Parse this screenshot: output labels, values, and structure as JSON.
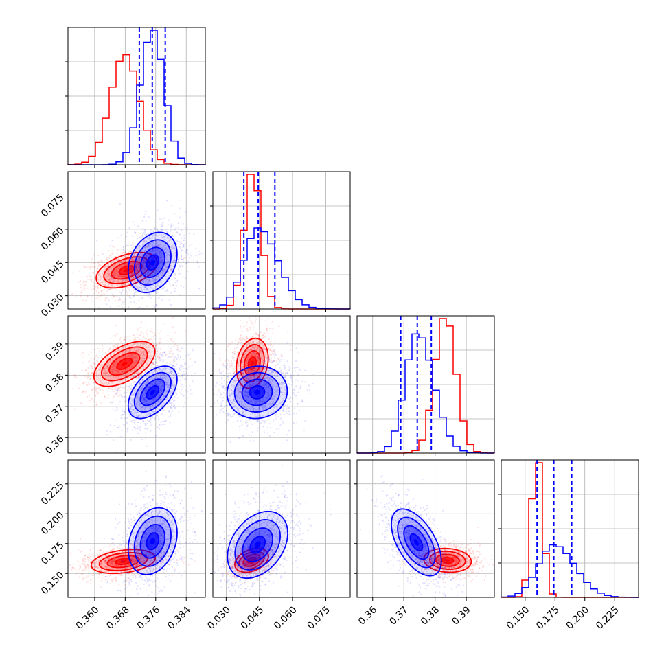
{
  "chart_data": {
    "type": "corner",
    "title": "",
    "parameters": 4,
    "grid": true,
    "series": [
      {
        "color": "#ff0000",
        "label": ""
      },
      {
        "color": "#0000ff",
        "label": ""
      }
    ],
    "axes": {
      "p0": {
        "range": [
          0.353,
          0.389
        ],
        "ticks": [
          0.36,
          0.368,
          0.376,
          0.384
        ],
        "tick_labels": [
          "0.360",
          "0.368",
          "0.376",
          "0.384"
        ]
      },
      "p1": {
        "range": [
          0.024,
          0.086
        ],
        "ticks": [
          0.03,
          0.045,
          0.06,
          0.075
        ],
        "tick_labels": [
          "0.030",
          "0.045",
          "0.060",
          "0.075"
        ]
      },
      "p2": {
        "range": [
          0.355,
          0.399
        ],
        "ticks": [
          0.36,
          0.37,
          0.38,
          0.39
        ],
        "tick_labels": [
          "0.36",
          "0.37",
          "0.38",
          "0.39"
        ]
      },
      "p3": {
        "range": [
          0.13,
          0.245
        ],
        "ticks": [
          0.15,
          0.175,
          0.2,
          0.225
        ],
        "tick_labels": [
          "0.150",
          "0.175",
          "0.200",
          "0.225"
        ]
      }
    },
    "marginals": [
      {
        "param": "p0",
        "red": {
          "mean": 0.3679,
          "sd": 0.0038
        },
        "blue": {
          "mean": 0.3751,
          "sd": 0.0031
        },
        "quantiles_blue": [
          0.3717,
          0.3751,
          0.3785
        ]
      },
      {
        "param": "p1",
        "red": {
          "mean": 0.042,
          "sd": 0.0038
        },
        "blue": {
          "mean": 0.0445,
          "sd": 0.0065
        },
        "quantiles_blue": [
          0.038,
          0.0445,
          0.052
        ]
      },
      {
        "param": "p2",
        "red": {
          "mean": 0.3833,
          "sd": 0.0034
        },
        "blue": {
          "mean": 0.3743,
          "sd": 0.0039
        },
        "quantiles_blue": [
          0.369,
          0.3743,
          0.3788
        ]
      },
      {
        "param": "p3",
        "red": {
          "mean": 0.16,
          "sd": 0.0048
        },
        "blue": {
          "mean": 0.174,
          "sd": 0.013
        },
        "quantiles_blue": [
          0.16,
          0.174,
          0.189
        ]
      }
    ],
    "joints": [
      {
        "x": "p0",
        "y": "p1",
        "red": {
          "cx": 0.3684,
          "cy": 0.0415,
          "sx": 0.004,
          "sy": 0.004,
          "rho": 0.45
        },
        "blue": {
          "cx": 0.3752,
          "cy": 0.045,
          "sx": 0.0032,
          "sy": 0.0068,
          "rho": 0.28
        }
      },
      {
        "x": "p0",
        "y": "p2",
        "red": {
          "cx": 0.3678,
          "cy": 0.3836,
          "sx": 0.004,
          "sy": 0.0036,
          "rho": 0.55
        },
        "blue": {
          "cx": 0.3752,
          "cy": 0.3745,
          "sx": 0.0032,
          "sy": 0.0042,
          "rho": 0.5
        }
      },
      {
        "x": "p1",
        "y": "p2",
        "red": {
          "cx": 0.0418,
          "cy": 0.3838,
          "sx": 0.0036,
          "sy": 0.004,
          "rho": 0.2
        },
        "blue": {
          "cx": 0.044,
          "cy": 0.3745,
          "sx": 0.0068,
          "sy": 0.0042,
          "rho": 0.05
        }
      },
      {
        "x": "p0",
        "y": "p3",
        "red": {
          "cx": 0.3675,
          "cy": 0.16,
          "sx": 0.0042,
          "sy": 0.005,
          "rho": 0.3
        },
        "blue": {
          "cx": 0.3752,
          "cy": 0.177,
          "sx": 0.0032,
          "sy": 0.014,
          "rho": 0.25
        }
      },
      {
        "x": "p1",
        "y": "p3",
        "red": {
          "cx": 0.0415,
          "cy": 0.161,
          "sx": 0.0038,
          "sy": 0.005,
          "rho": 0.35
        },
        "blue": {
          "cx": 0.0442,
          "cy": 0.174,
          "sx": 0.0068,
          "sy": 0.014,
          "rho": 0.35
        }
      },
      {
        "x": "p2",
        "y": "p3",
        "red": {
          "cx": 0.384,
          "cy": 0.161,
          "sx": 0.0038,
          "sy": 0.005,
          "rho": -0.1
        },
        "blue": {
          "cx": 0.374,
          "cy": 0.176,
          "sx": 0.004,
          "sy": 0.014,
          "rho": -0.55
        }
      }
    ]
  }
}
